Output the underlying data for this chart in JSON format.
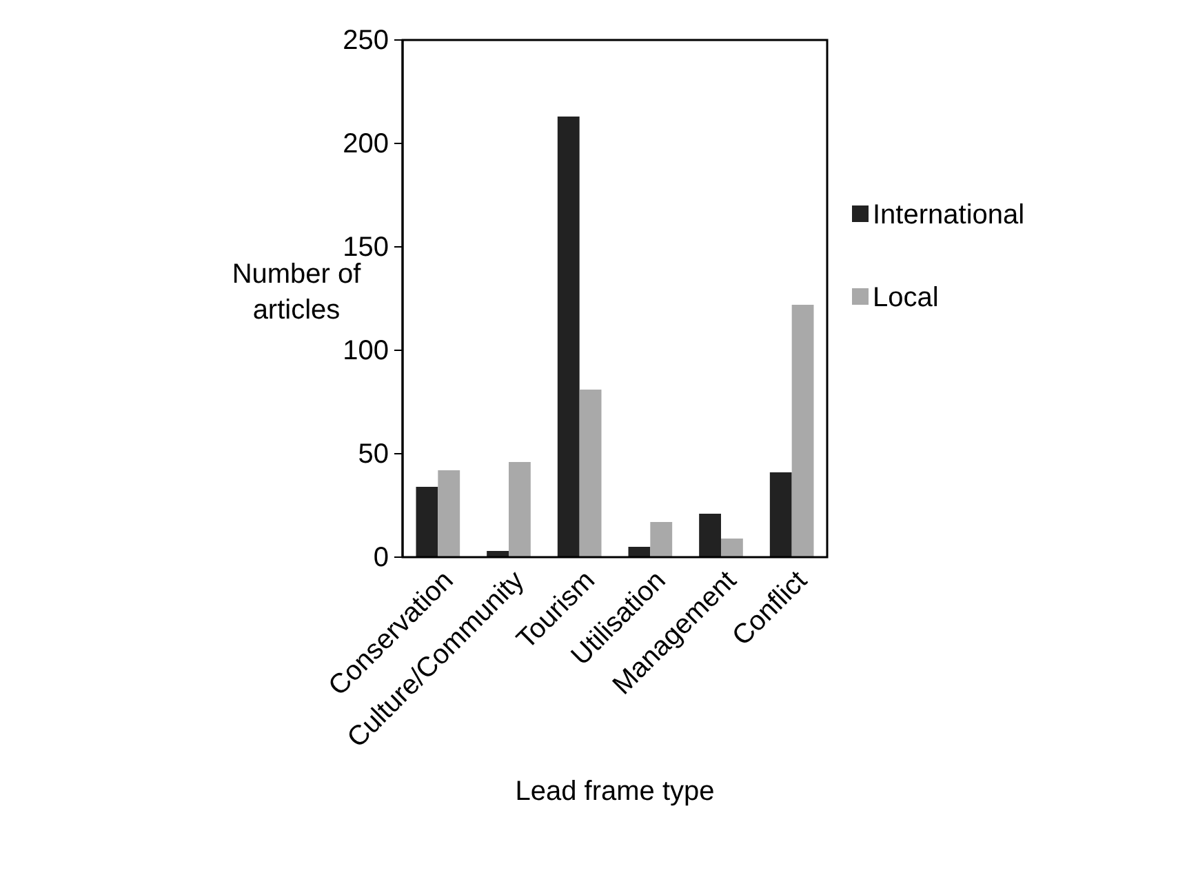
{
  "chart_data": {
    "type": "bar",
    "xlabel": "Lead frame type",
    "ylabel": "Number of articles",
    "categories": [
      "Conservation",
      "Culture/Community",
      "Tourism",
      "Utilisation",
      "Management",
      "Conflict"
    ],
    "series": [
      {
        "name": "International",
        "color": "#222222",
        "values": [
          34,
          3,
          213,
          5,
          21,
          41
        ]
      },
      {
        "name": "Local",
        "color": "#a9a9a9",
        "values": [
          42,
          46,
          81,
          17,
          9,
          122
        ]
      }
    ],
    "ylim": [
      0,
      250
    ],
    "yticks": [
      0,
      50,
      100,
      150,
      200,
      250
    ],
    "grid": false,
    "legend": "right"
  }
}
